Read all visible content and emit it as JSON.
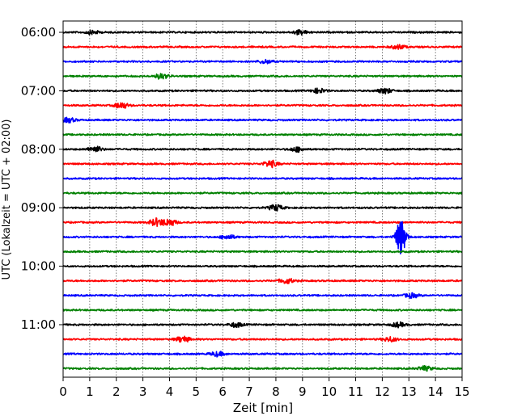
{
  "chart_data": {
    "type": "line",
    "title": "",
    "xlabel": "Zeit  [min]",
    "ylabel": "UTC (Lokalzeit = UTC + 02:00)",
    "xlim": [
      0,
      15
    ],
    "x_ticks": [
      0,
      1,
      2,
      3,
      4,
      5,
      6,
      7,
      8,
      9,
      10,
      11,
      12,
      13,
      14,
      15
    ],
    "x_gridlines": "dotted vertical at each minute",
    "y_tick_labels": [
      "06:00",
      "07:00",
      "08:00",
      "09:00",
      "10:00",
      "11:00"
    ],
    "trace_start_times": [
      "06:00",
      "06:15",
      "06:30",
      "06:45",
      "07:00",
      "07:15",
      "07:30",
      "07:45",
      "08:00",
      "08:15",
      "08:30",
      "08:45",
      "09:00",
      "09:15",
      "09:30",
      "09:45",
      "10:00",
      "10:15",
      "10:30",
      "10:45",
      "11:00",
      "11:15",
      "11:30",
      "11:45"
    ],
    "trace_minutes": 15,
    "colors": [
      "#000000",
      "#ff0000",
      "#0000ff",
      "#008000"
    ],
    "events": [
      {
        "trace_start": "06:00",
        "minute": 1.1,
        "amplitude": 0.25
      },
      {
        "trace_start": "06:00",
        "minute": 8.9,
        "amplitude": 0.3
      },
      {
        "trace_start": "06:15",
        "minute": 12.6,
        "amplitude": 0.3
      },
      {
        "trace_start": "06:30",
        "minute": 7.6,
        "amplitude": 0.25
      },
      {
        "trace_start": "06:45",
        "minute": 3.7,
        "amplitude": 0.35
      },
      {
        "trace_start": "07:00",
        "minute": 9.6,
        "amplitude": 0.3
      },
      {
        "trace_start": "07:00",
        "minute": 12.1,
        "amplitude": 0.35
      },
      {
        "trace_start": "07:15",
        "minute": 2.2,
        "amplitude": 0.4
      },
      {
        "trace_start": "07:30",
        "minute": 0.2,
        "amplitude": 0.3
      },
      {
        "trace_start": "08:00",
        "minute": 1.2,
        "amplitude": 0.4
      },
      {
        "trace_start": "08:00",
        "minute": 8.8,
        "amplitude": 0.3
      },
      {
        "trace_start": "08:15",
        "minute": 7.8,
        "amplitude": 0.45
      },
      {
        "trace_start": "09:00",
        "minute": 8.0,
        "amplitude": 0.4
      },
      {
        "trace_start": "09:15",
        "minute": 3.5,
        "amplitude": 0.5
      },
      {
        "trace_start": "09:15",
        "minute": 4.0,
        "amplitude": 0.45
      },
      {
        "trace_start": "09:30",
        "minute": 6.2,
        "amplitude": 0.3
      },
      {
        "trace_start": "09:30",
        "minute": 12.7,
        "amplitude": 2.5
      },
      {
        "trace_start": "10:15",
        "minute": 8.4,
        "amplitude": 0.35
      },
      {
        "trace_start": "10:30",
        "minute": 13.1,
        "amplitude": 0.3
      },
      {
        "trace_start": "11:00",
        "minute": 6.5,
        "amplitude": 0.3
      },
      {
        "trace_start": "11:00",
        "minute": 12.6,
        "amplitude": 0.3
      },
      {
        "trace_start": "11:15",
        "minute": 4.5,
        "amplitude": 0.4
      },
      {
        "trace_start": "11:15",
        "minute": 12.3,
        "amplitude": 0.3
      },
      {
        "trace_start": "11:30",
        "minute": 5.8,
        "amplitude": 0.3
      },
      {
        "trace_start": "11:45",
        "minute": 13.6,
        "amplitude": 0.3
      }
    ]
  }
}
